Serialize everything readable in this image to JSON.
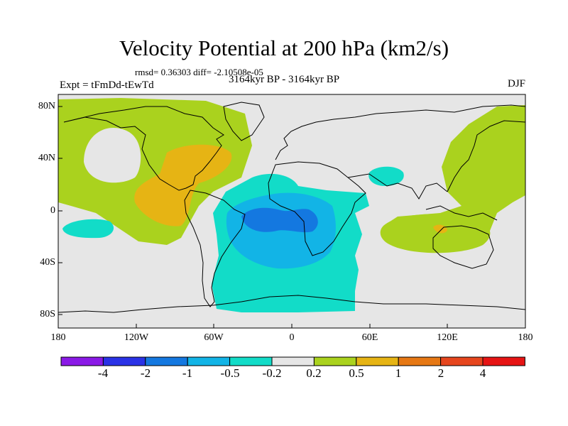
{
  "title": "Velocity Potential at 200 hPa (km2/s)",
  "stats_text": "rmsd= 0.36303 diff= -2.10508e-05",
  "left_label": "Expt = tFmDd-tEwTd",
  "center_label": "3164kyr BP - 3164kyr BP",
  "right_label": "DJF",
  "lat_labels": [
    "80N",
    "40N",
    "0",
    "40S",
    "80S"
  ],
  "lon_labels": [
    "180",
    "120W",
    "60W",
    "0",
    "60E",
    "120E",
    "180"
  ],
  "colorbar": {
    "labels": [
      "-4",
      "-2",
      "-1",
      "-0.5",
      "-0.2",
      "0.2",
      "0.5",
      "1",
      "2",
      "4"
    ],
    "colors": [
      "#8a1ae6",
      "#2a32e6",
      "#1478e0",
      "#12b4e6",
      "#12dcc8",
      "#e6e6e6",
      "#aad21e",
      "#e6b414",
      "#e67814",
      "#e6461e",
      "#e61414"
    ]
  },
  "region_colors": {
    "background": "#e6e6e6",
    "positive_weak": "#aad21e",
    "positive_mid": "#e6b414",
    "positive_strong": "#e67814",
    "negative_weak": "#12dcc8",
    "negative_mid": "#12b4e6",
    "negative_strong": "#1478e0"
  }
}
